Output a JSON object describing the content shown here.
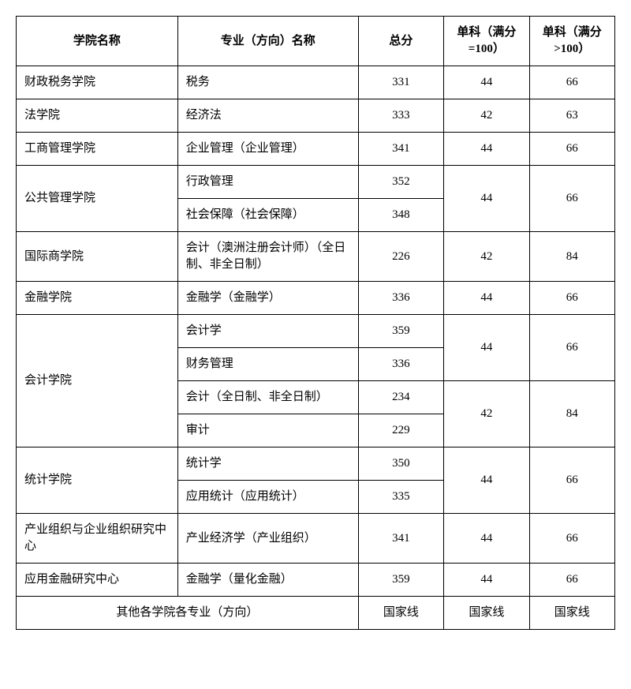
{
  "table": {
    "headers": {
      "college": "学院名称",
      "major": "专业（方向）名称",
      "total": "总分",
      "subject100": "单科（满分=100）",
      "subject_gt100": "单科（满分>100）"
    },
    "rows": {
      "r1": {
        "college": "财政税务学院",
        "major": "税务",
        "total": "331",
        "s100": "44",
        "sgt": "66"
      },
      "r2": {
        "college": "法学院",
        "major": "经济法",
        "total": "333",
        "s100": "42",
        "sgt": "63"
      },
      "r3": {
        "college": "工商管理学院",
        "major": "企业管理（企业管理）",
        "total": "341",
        "s100": "44",
        "sgt": "66"
      },
      "r4": {
        "college": "公共管理学院",
        "major": "行政管理",
        "total": "352",
        "s100": "44",
        "sgt": "66"
      },
      "r5": {
        "major": "社会保障（社会保障）",
        "total": "348"
      },
      "r6": {
        "college": "国际商学院",
        "major": "会计（澳洲注册会计师）（全日制、非全日制）",
        "total": "226",
        "s100": "42",
        "sgt": "84"
      },
      "r7": {
        "college": "金融学院",
        "major": "金融学（金融学）",
        "total": "336",
        "s100": "44",
        "sgt": "66"
      },
      "r8": {
        "college": "会计学院",
        "major": "会计学",
        "total": "359",
        "s100": "44",
        "sgt": "66"
      },
      "r9": {
        "major": "财务管理",
        "total": "336"
      },
      "r10": {
        "major": "会计（全日制、非全日制）",
        "total": "234",
        "s100": "42",
        "sgt": "84"
      },
      "r11": {
        "major": "审计",
        "total": "229"
      },
      "r12": {
        "college": "统计学院",
        "major": "统计学",
        "total": "350",
        "s100": "44",
        "sgt": "66"
      },
      "r13": {
        "major": "应用统计（应用统计）",
        "total": "335"
      },
      "r14": {
        "college": "产业组织与企业组织研究中心",
        "major": "产业经济学（产业组织）",
        "total": "341",
        "s100": "44",
        "sgt": "66"
      },
      "r15": {
        "college": "应用金融研究中心",
        "major": "金融学（量化金融）",
        "total": "359",
        "s100": "44",
        "sgt": "66"
      },
      "r16": {
        "college_merged": "其他各学院各专业（方向）",
        "total": "国家线",
        "s100": "国家线",
        "sgt": "国家线"
      }
    }
  }
}
